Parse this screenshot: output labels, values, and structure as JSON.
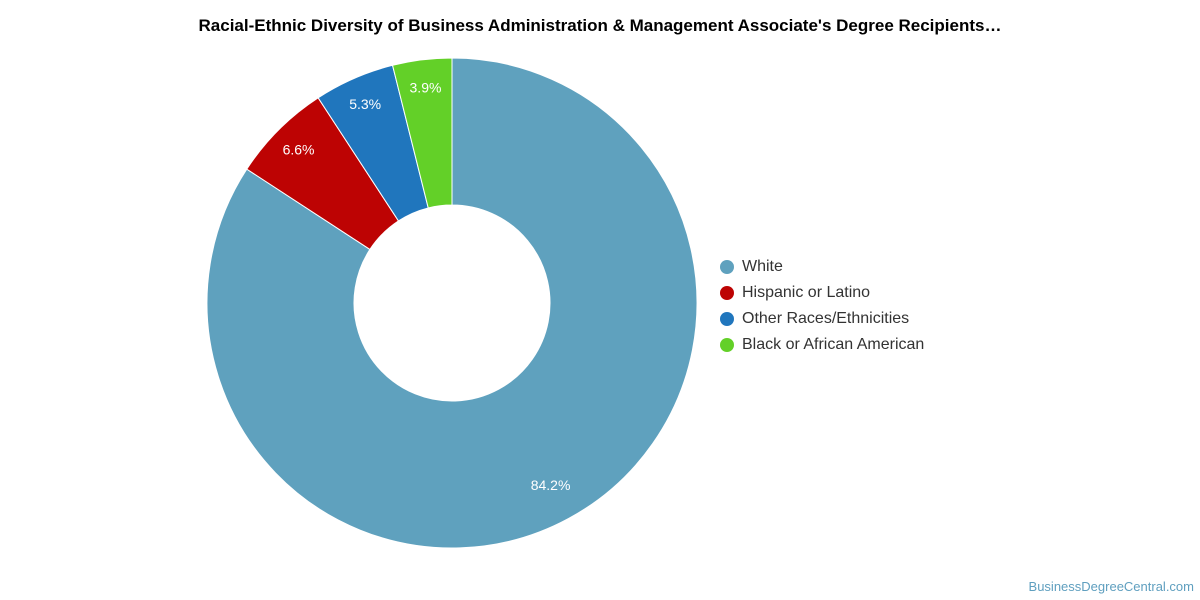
{
  "chart_data": {
    "type": "pie",
    "title": "Racial-Ethnic Diversity of Business Administration & Management Associate's Degree Recipients…",
    "categories": [
      "White",
      "Hispanic or Latino",
      "Other Races/Ethnicities",
      "Black or African American"
    ],
    "values": [
      84.2,
      6.6,
      5.3,
      3.9
    ],
    "value_labels": [
      "84.2%",
      "6.6%",
      "5.3%",
      "3.9%"
    ],
    "colors": [
      "#5fa1be",
      "#bd0303",
      "#2076bd",
      "#63d028"
    ],
    "donut": true,
    "legend_position": "right"
  },
  "watermark": "BusinessDegreeCentral.com"
}
